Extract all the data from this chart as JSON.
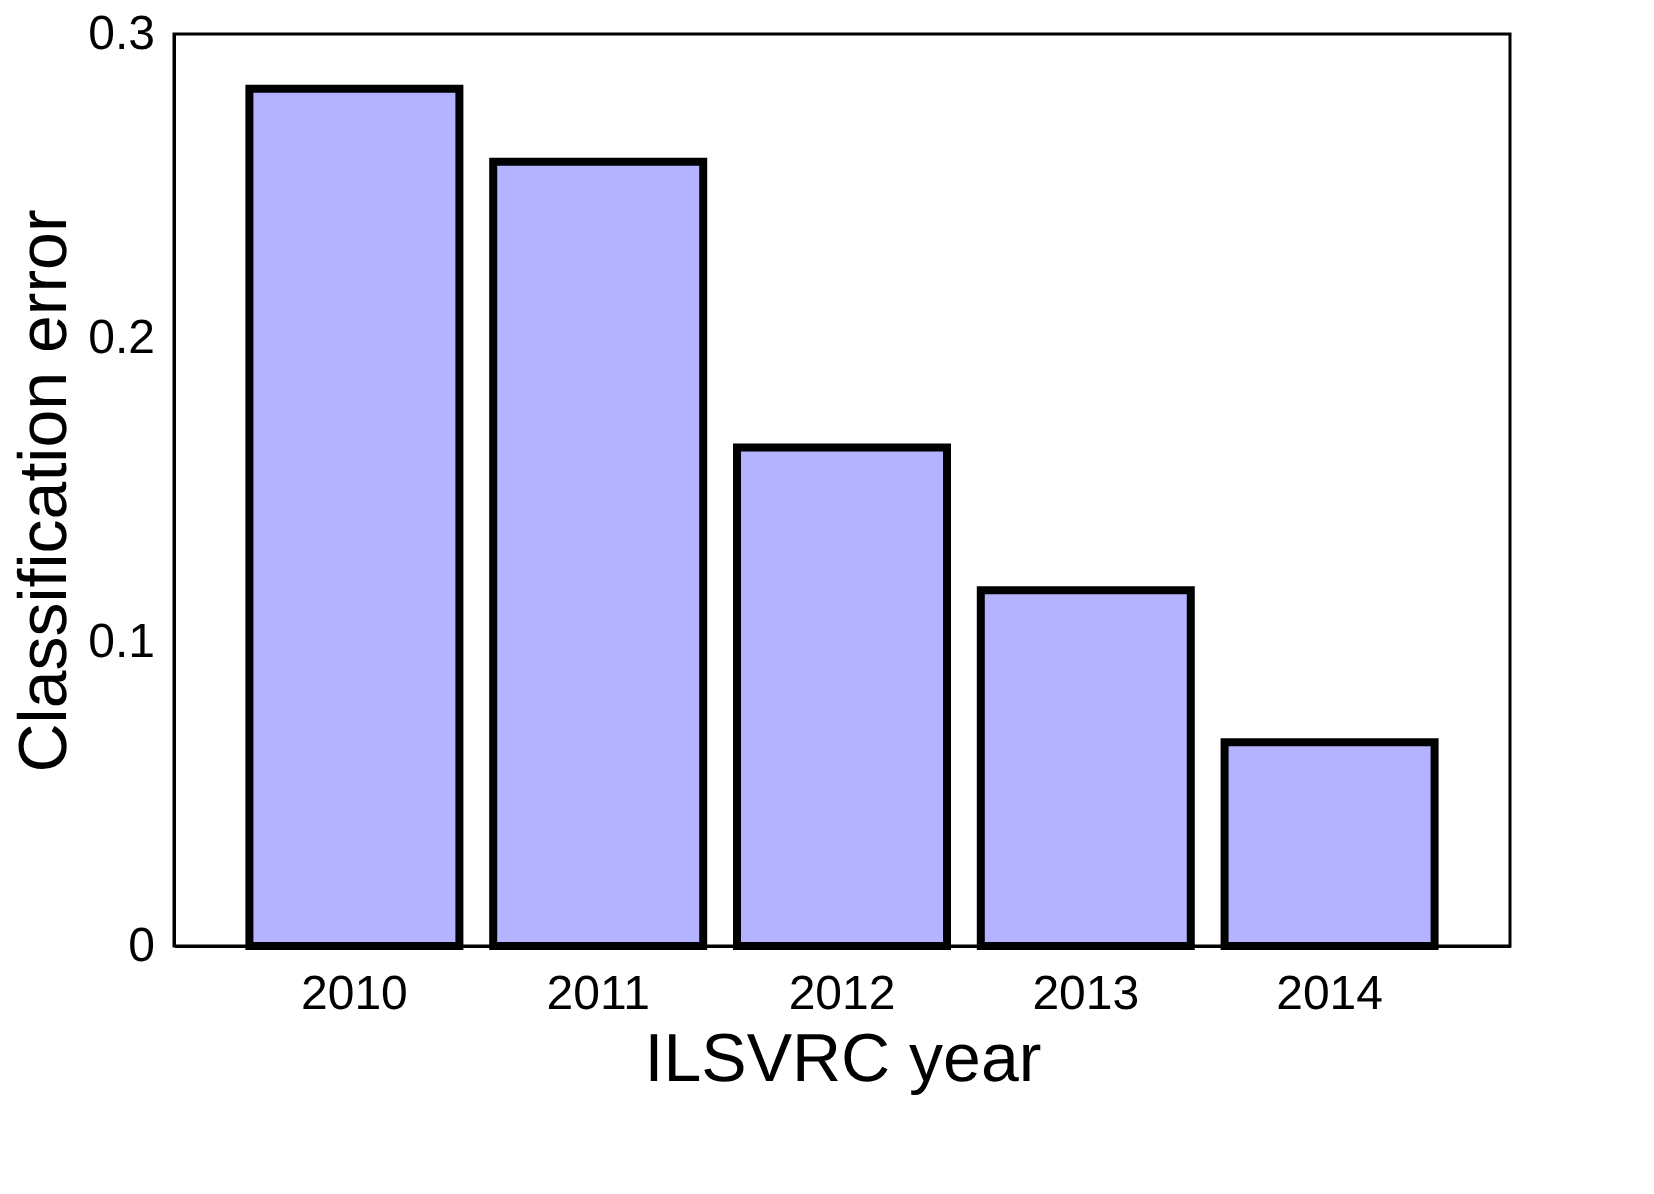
{
  "chart_data": {
    "type": "bar",
    "xlabel": "ILSVRC year",
    "ylabel": "Classification error",
    "categories": [
      "2010",
      "2011",
      "2012",
      "2013",
      "2014"
    ],
    "values": [
      0.282,
      0.258,
      0.164,
      0.117,
      0.067
    ],
    "color": "#b3b3ff",
    "ylim": [
      0,
      0.3
    ],
    "yticks": [
      0,
      0.1,
      0.2,
      0.3
    ],
    "grid": false
  }
}
